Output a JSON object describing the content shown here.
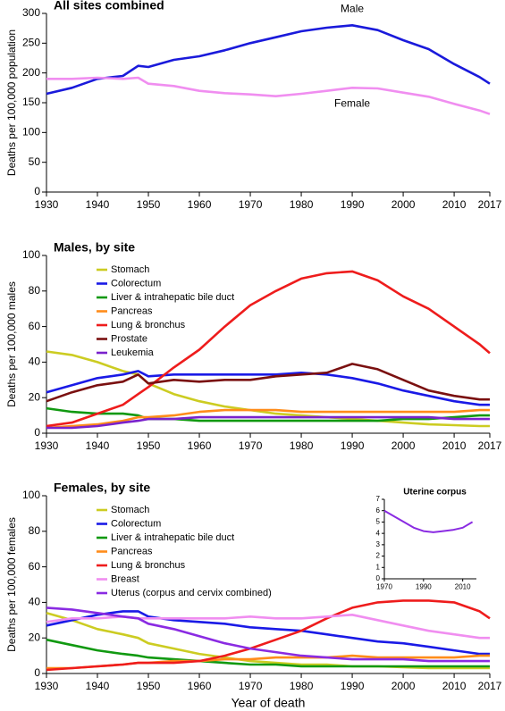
{
  "chart_data": [
    {
      "type": "line",
      "title": "All sites combined",
      "ylabel": "Deaths per 100,000 population",
      "x": [
        1930,
        1935,
        1940,
        1945,
        1948,
        1950,
        1955,
        1960,
        1965,
        1970,
        1975,
        1980,
        1985,
        1990,
        1995,
        2000,
        2005,
        2010,
        2015,
        2017
      ],
      "xlim": [
        1930,
        2017
      ],
      "xticks": [
        1930,
        1940,
        1950,
        1960,
        1970,
        1980,
        1990,
        2000,
        2010,
        2017
      ],
      "ylim": [
        0,
        300
      ],
      "yticks": [
        0,
        50,
        100,
        150,
        200,
        250,
        300
      ],
      "legend": "direct",
      "series": [
        {
          "name": "Male",
          "color": "#1a1adb",
          "values": [
            165,
            175,
            190,
            195,
            212,
            210,
            222,
            228,
            238,
            250,
            260,
            270,
            276,
            280,
            272,
            255,
            240,
            215,
            193,
            182
          ]
        },
        {
          "name": "Female",
          "color": "#f08ef0",
          "values": [
            190,
            190,
            192,
            190,
            192,
            182,
            178,
            170,
            166,
            164,
            161,
            165,
            170,
            175,
            174,
            167,
            160,
            148,
            137,
            131
          ]
        }
      ]
    },
    {
      "type": "line",
      "title": "Males, by site",
      "ylabel": "Deaths per 100,000 males",
      "x": [
        1930,
        1935,
        1940,
        1945,
        1948,
        1950,
        1955,
        1960,
        1965,
        1970,
        1975,
        1980,
        1985,
        1990,
        1995,
        2000,
        2005,
        2010,
        2015,
        2017
      ],
      "xlim": [
        1930,
        2017
      ],
      "xticks": [
        1930,
        1940,
        1950,
        1960,
        1970,
        1980,
        1990,
        2000,
        2010,
        2017
      ],
      "ylim": [
        0,
        100
      ],
      "yticks": [
        0,
        20,
        40,
        60,
        80,
        100
      ],
      "legend": "upper left",
      "series": [
        {
          "name": "Stomach",
          "color": "#cccc22",
          "values": [
            46,
            44,
            40,
            35,
            33,
            28,
            22,
            18,
            15,
            13,
            11,
            10,
            9,
            8,
            7,
            6,
            5,
            4.5,
            4,
            4
          ]
        },
        {
          "name": "Colorectum",
          "color": "#1a1ae6",
          "values": [
            23,
            27,
            31,
            33,
            35,
            32,
            33,
            33,
            33,
            33,
            33,
            34,
            33,
            31,
            28,
            24,
            21,
            18,
            16,
            16
          ]
        },
        {
          "name": "Liver & intrahepatic bile duct",
          "color": "#119911",
          "values": [
            14,
            12,
            11,
            11,
            10,
            8,
            8,
            7,
            7,
            7,
            7,
            7,
            7,
            7,
            7,
            8,
            8,
            9,
            10,
            10
          ]
        },
        {
          "name": "Pancreas",
          "color": "#ff8c1a",
          "values": [
            3,
            4,
            5,
            7,
            9,
            9,
            10,
            12,
            13,
            13,
            13,
            12,
            12,
            12,
            12,
            12,
            12,
            12,
            13,
            13
          ]
        },
        {
          "name": "Lung & bronchus",
          "color": "#ee1c1c",
          "values": [
            4,
            6,
            11,
            16,
            22,
            26,
            37,
            47,
            60,
            72,
            80,
            87,
            90,
            91,
            86,
            77,
            70,
            60,
            50,
            45
          ]
        },
        {
          "name": "Prostate",
          "color": "#7a1010",
          "values": [
            18,
            23,
            27,
            29,
            33,
            28,
            30,
            29,
            30,
            30,
            32,
            33,
            34,
            39,
            36,
            30,
            24,
            21,
            19,
            19
          ]
        },
        {
          "name": "Leukemia",
          "color": "#7a22cc",
          "values": [
            3,
            3,
            4,
            6,
            7,
            8,
            8,
            9,
            9,
            9,
            9,
            9,
            9,
            9,
            9,
            9,
            9,
            8,
            8,
            8
          ]
        }
      ]
    },
    {
      "type": "line",
      "title": "Females, by site",
      "ylabel": "Deaths per 100,000 females",
      "xlabel": "Year of death",
      "x": [
        1930,
        1935,
        1940,
        1945,
        1948,
        1950,
        1955,
        1960,
        1965,
        1970,
        1975,
        1980,
        1985,
        1990,
        1995,
        2000,
        2005,
        2010,
        2015,
        2017
      ],
      "xlim": [
        1930,
        2017
      ],
      "xticks": [
        1930,
        1940,
        1950,
        1960,
        1970,
        1980,
        1990,
        2000,
        2010,
        2017
      ],
      "ylim": [
        0,
        100
      ],
      "yticks": [
        0,
        20,
        40,
        60,
        80,
        100
      ],
      "legend": "upper left",
      "series": [
        {
          "name": "Stomach",
          "color": "#cccc22",
          "values": [
            34,
            30,
            25,
            22,
            20,
            17,
            14,
            11,
            9,
            7,
            6,
            5,
            5,
            4,
            4,
            3.5,
            3,
            3,
            3,
            3
          ]
        },
        {
          "name": "Colorectum",
          "color": "#1a1ae6",
          "values": [
            27,
            30,
            33,
            35,
            35,
            32,
            30,
            29,
            28,
            26,
            25,
            24,
            22,
            20,
            18,
            17,
            15,
            13,
            11,
            11
          ]
        },
        {
          "name": "Liver & intrahepatic bile duct",
          "color": "#119911",
          "values": [
            19,
            16,
            13,
            11,
            10,
            9,
            8,
            7,
            6,
            5,
            5,
            4,
            4,
            4,
            4,
            4,
            4,
            4,
            4,
            4
          ]
        },
        {
          "name": "Pancreas",
          "color": "#ff8c1a",
          "values": [
            3,
            3,
            4,
            5,
            6,
            6,
            7,
            7,
            8,
            8,
            9,
            9,
            9,
            10,
            9,
            9,
            9,
            9,
            10,
            10
          ]
        },
        {
          "name": "Lung & bronchus",
          "color": "#ee1c1c",
          "values": [
            2,
            3,
            4,
            5,
            6,
            6,
            6,
            7,
            10,
            14,
            19,
            24,
            31,
            37,
            40,
            41,
            41,
            40,
            35,
            31
          ]
        },
        {
          "name": "Breast",
          "color": "#f08ef0",
          "values": [
            29,
            31,
            31,
            32,
            31,
            31,
            31,
            31,
            31,
            32,
            31,
            31,
            32,
            33,
            30,
            27,
            24,
            22,
            20,
            20
          ]
        },
        {
          "name": "Uterus (corpus and cervix combined)",
          "color": "#8a2be2",
          "values": [
            37,
            36,
            34,
            32,
            31,
            28,
            25,
            21,
            17,
            14,
            12,
            10,
            9,
            8,
            8,
            8,
            7,
            7,
            7,
            7
          ]
        }
      ]
    },
    {
      "type": "line",
      "title": "Uterine corpus",
      "x": [
        1970,
        1975,
        1980,
        1985,
        1990,
        1995,
        2000,
        2005,
        2010,
        2015
      ],
      "xlim": [
        1970,
        2017
      ],
      "xticks": [
        1970,
        1990,
        2010
      ],
      "ylim": [
        0,
        7
      ],
      "yticks": [
        0,
        1,
        2,
        3,
        4,
        5,
        6,
        7
      ],
      "series": [
        {
          "color": "#8a2be2",
          "values": [
            6,
            5.5,
            5.0,
            4.5,
            4.2,
            4.1,
            4.2,
            4.3,
            4.5,
            5.0
          ]
        }
      ]
    }
  ]
}
